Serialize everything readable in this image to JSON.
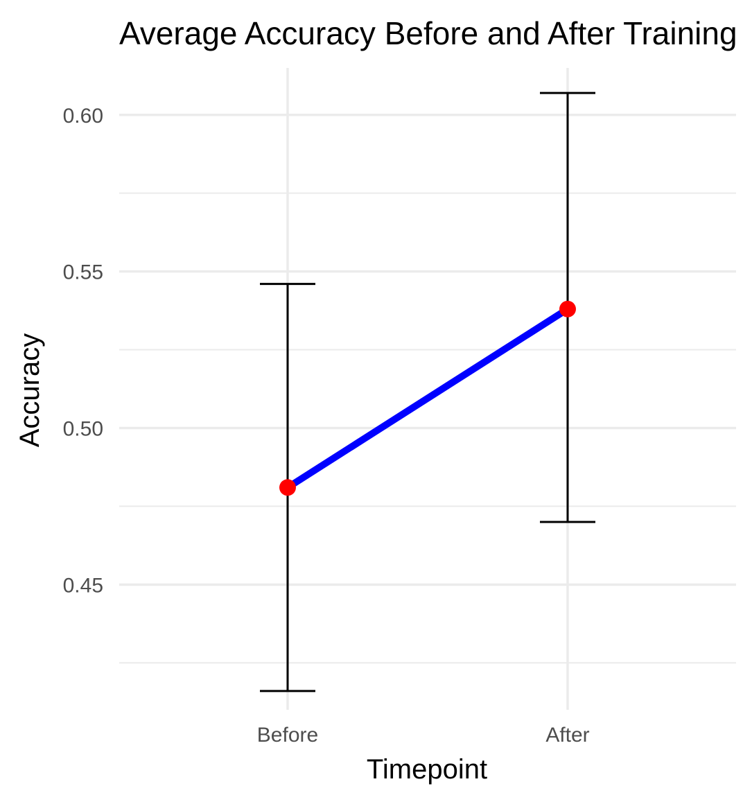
{
  "chart_data": {
    "type": "line",
    "title": "Average Accuracy Before and After Training",
    "xlabel": "Timepoint",
    "ylabel": "Accuracy",
    "categories": [
      "Before",
      "After"
    ],
    "series": [
      {
        "values": [
          0.481,
          0.538
        ],
        "error_low": [
          0.416,
          0.47
        ],
        "error_high": [
          0.546,
          0.607
        ]
      }
    ],
    "ylim": [
      0.41,
      0.615
    ],
    "yticks": [
      0.45,
      0.5,
      0.55,
      0.6
    ],
    "ytick_labels": [
      "0.45",
      "0.50",
      "0.55",
      "0.60"
    ],
    "grid": true,
    "colors": {
      "line": "#0000ff",
      "points": "#ff0000",
      "errorbars": "#000000",
      "grid": "#ebebeb"
    }
  }
}
